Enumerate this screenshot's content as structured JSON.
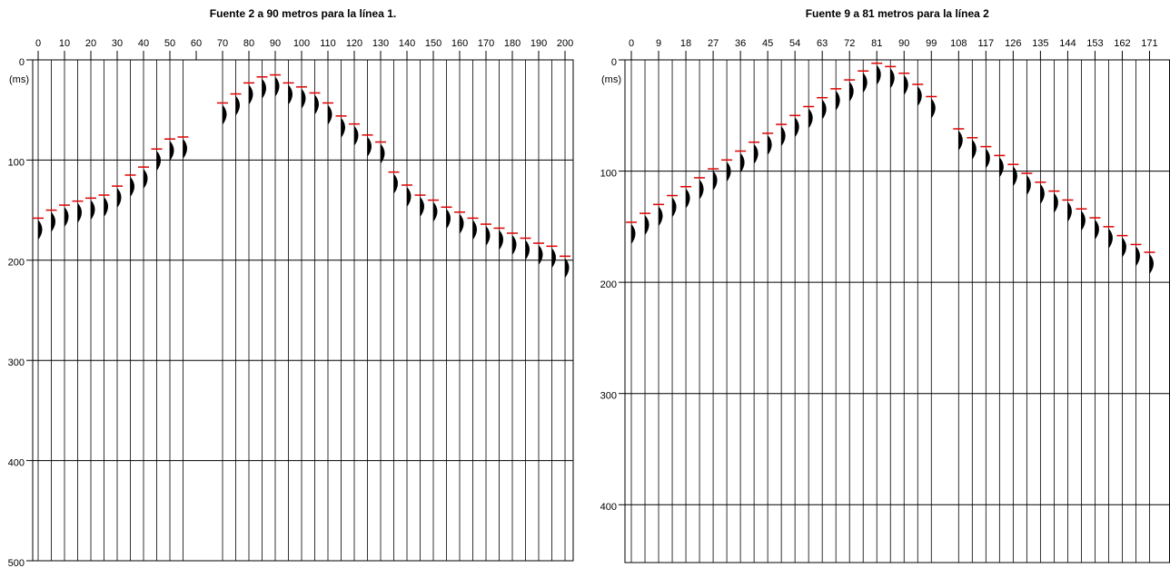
{
  "chart_data": [
    {
      "type": "scatter",
      "title": "Fuente 2 a 90 metros para la línea 1.",
      "ylabel": "(ms)",
      "color": "#e00000",
      "x": [
        0,
        5,
        10,
        15,
        20,
        25,
        30,
        35,
        40,
        45,
        50,
        55,
        70,
        75,
        80,
        85,
        90,
        95,
        100,
        105,
        110,
        115,
        120,
        125,
        130,
        135,
        140,
        145,
        150,
        155,
        160,
        165,
        170,
        175,
        180,
        185,
        190,
        195,
        200
      ],
      "values": [
        158,
        150,
        145,
        141,
        138,
        135,
        126,
        115,
        107,
        89,
        79,
        77,
        43,
        34,
        23,
        17,
        15,
        23,
        27,
        33,
        43,
        56,
        64,
        75,
        82,
        112,
        125,
        135,
        140,
        147,
        152,
        158,
        164,
        168,
        173,
        178,
        183,
        186,
        196
      ],
      "xlim": [
        -2.07,
        203.1
      ],
      "ylim": [
        500,
        0
      ],
      "xticks": [
        0,
        10,
        20,
        30,
        40,
        50,
        60,
        70,
        80,
        90,
        100,
        110,
        120,
        130,
        140,
        150,
        160,
        170,
        180,
        190,
        200
      ],
      "yticks": [
        0,
        100,
        200,
        300,
        400,
        500
      ],
      "grid": true
    },
    {
      "type": "scatter",
      "title": "Fuente 9 a 81 metros para la línea 2",
      "ylabel": "(ms)",
      "color": "#e00000",
      "x": [
        0,
        4.5,
        9,
        13.5,
        18,
        22.5,
        27,
        31.5,
        36,
        40.5,
        45,
        49.5,
        54,
        58.5,
        63,
        67.5,
        72,
        76.5,
        81,
        85.5,
        90,
        94.5,
        99,
        108,
        112.5,
        117,
        121.5,
        126,
        130.5,
        135,
        139.5,
        144,
        148.5,
        153,
        157.5,
        162,
        166.5,
        171
      ],
      "values": [
        146,
        138,
        130,
        122,
        114,
        106,
        98,
        90,
        82,
        74,
        66,
        58,
        50,
        42,
        34,
        26,
        18,
        10,
        3,
        6,
        12,
        22,
        33,
        62,
        70,
        78,
        86,
        94,
        102,
        110,
        118,
        126,
        134,
        142,
        150,
        158,
        166,
        173
      ],
      "xlim": [
        -2.1,
        177.6
      ],
      "ylim": [
        452,
        0
      ],
      "xticks": [
        0,
        9,
        18,
        27,
        36,
        45,
        54,
        63,
        72,
        81,
        90,
        99,
        108,
        117,
        126,
        135,
        144,
        153,
        162,
        171
      ],
      "yticks": [
        0,
        100,
        200,
        300,
        400
      ],
      "grid": true
    }
  ]
}
